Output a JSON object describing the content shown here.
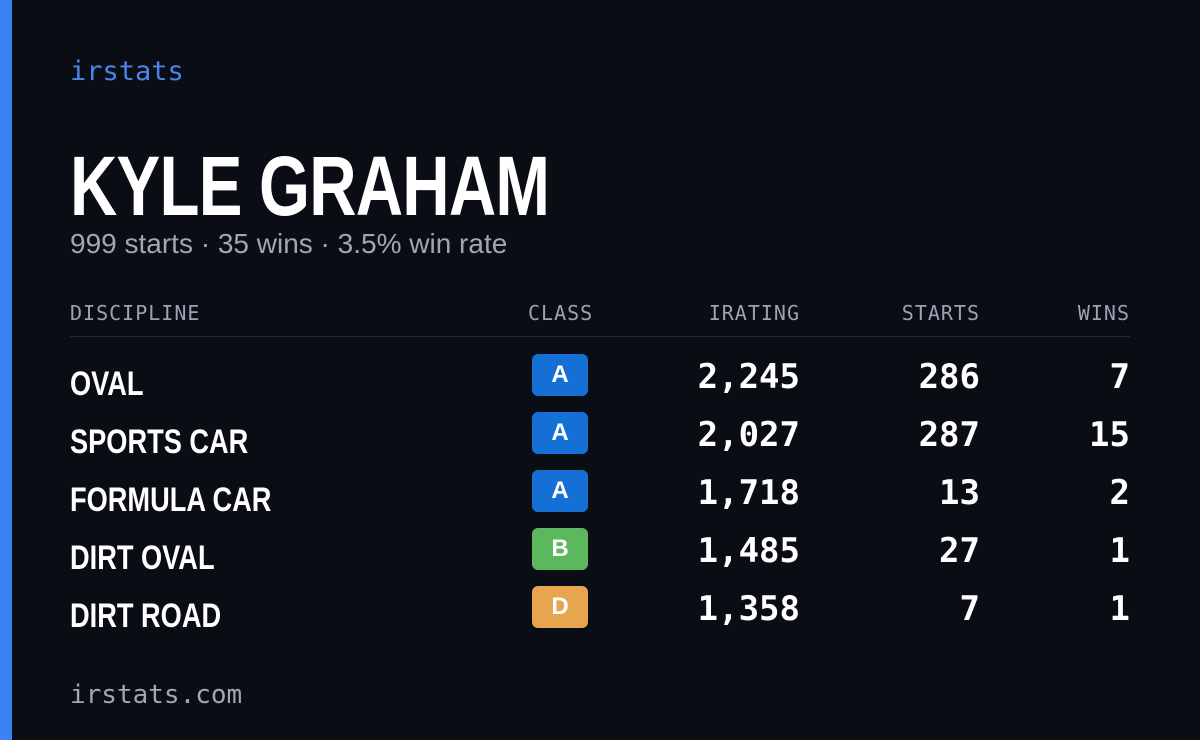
{
  "brand": "irstats",
  "driver": {
    "name": "KYLE GRAHAM",
    "summary": "999 starts · 35 wins · 3.5% win rate"
  },
  "table": {
    "headers": [
      "DISCIPLINE",
      "CLASS",
      "IRATING",
      "STARTS",
      "WINS"
    ],
    "rows": [
      {
        "discipline": "OVAL",
        "class": "A",
        "class_color": "#1570d6",
        "irating": "2,245",
        "starts": "286",
        "wins": "7"
      },
      {
        "discipline": "SPORTS CAR",
        "class": "A",
        "class_color": "#1570d6",
        "irating": "2,027",
        "starts": "287",
        "wins": "15"
      },
      {
        "discipline": "FORMULA CAR",
        "class": "A",
        "class_color": "#1570d6",
        "irating": "1,718",
        "starts": "13",
        "wins": "2"
      },
      {
        "discipline": "DIRT OVAL",
        "class": "B",
        "class_color": "#5cb85c",
        "irating": "1,485",
        "starts": "27",
        "wins": "1"
      },
      {
        "discipline": "DIRT ROAD",
        "class": "D",
        "class_color": "#e8a54f",
        "irating": "1,358",
        "starts": "7",
        "wins": "1"
      }
    ]
  },
  "footer": "irstats.com"
}
